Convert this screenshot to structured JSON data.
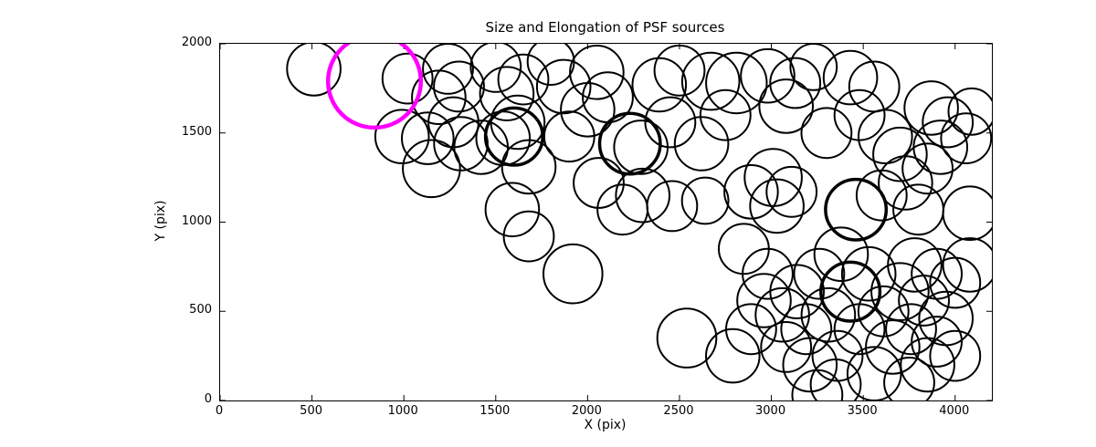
{
  "chart_data": {
    "type": "scatter",
    "title": "Size and Elongation of PSF sources",
    "xlabel": "X (pix)",
    "ylabel": "Y (pix)",
    "xlim": [
      0,
      4200
    ],
    "ylim": [
      0,
      2000
    ],
    "xticks": [
      0,
      500,
      1000,
      1500,
      2000,
      2500,
      3000,
      3500,
      4000
    ],
    "yticks": [
      0,
      500,
      1000,
      1500,
      2000
    ],
    "grid": false,
    "legend": null,
    "marker": "open-circle",
    "circle_color": "#000000",
    "default_linewidth": 2,
    "highlight": {
      "x": 840,
      "y": 1790,
      "r": 260,
      "w": 4.5,
      "color": "#ff00ff"
    },
    "points": [
      [
        510,
        1860,
        150
      ],
      [
        1020,
        1805,
        140
      ],
      [
        1240,
        1860,
        140
      ],
      [
        1190,
        1700,
        150
      ],
      [
        1300,
        1760,
        140
      ],
      [
        990,
        1480,
        150
      ],
      [
        1130,
        1470,
        145
      ],
      [
        1150,
        1300,
        160
      ],
      [
        1310,
        1440,
        150
      ],
      [
        1270,
        1560,
        140
      ],
      [
        1420,
        1420,
        150
      ],
      [
        1500,
        1870,
        140
      ],
      [
        1560,
        1720,
        150
      ],
      [
        1650,
        1800,
        140
      ],
      [
        1620,
        1560,
        150
      ],
      [
        1540,
        1470,
        150
      ],
      [
        1600,
        1480,
        160,
        3.5
      ],
      [
        1680,
        1310,
        150
      ],
      [
        1800,
        1900,
        130
      ],
      [
        1870,
        1760,
        150
      ],
      [
        1900,
        1480,
        140
      ],
      [
        2000,
        1630,
        150
      ],
      [
        2050,
        1840,
        150
      ],
      [
        1590,
        1070,
        150
      ],
      [
        1680,
        920,
        140
      ],
      [
        1920,
        710,
        165
      ],
      [
        2110,
        1700,
        140
      ],
      [
        2060,
        1220,
        140
      ],
      [
        2190,
        1070,
        140
      ],
      [
        2230,
        1440,
        170,
        3.5
      ],
      [
        2290,
        1420,
        150
      ],
      [
        2300,
        1150,
        150
      ],
      [
        2390,
        1770,
        150
      ],
      [
        2460,
        1090,
        140
      ],
      [
        2500,
        1850,
        140
      ],
      [
        2450,
        1560,
        140
      ],
      [
        2540,
        350,
        165
      ],
      [
        2620,
        1440,
        150
      ],
      [
        2640,
        1120,
        130
      ],
      [
        2670,
        1790,
        160
      ],
      [
        2750,
        1600,
        140
      ],
      [
        2810,
        1780,
        170
      ],
      [
        2790,
        250,
        150
      ],
      [
        2850,
        850,
        140
      ],
      [
        2890,
        400,
        140
      ],
      [
        2890,
        1170,
        150
      ],
      [
        2980,
        1820,
        150
      ],
      [
        2960,
        560,
        150
      ],
      [
        2980,
        710,
        140
      ],
      [
        3010,
        1250,
        160
      ],
      [
        3030,
        1090,
        150
      ],
      [
        3060,
        480,
        150
      ],
      [
        3080,
        300,
        140
      ],
      [
        3080,
        1650,
        150
      ],
      [
        3110,
        1170,
        140
      ],
      [
        3140,
        610,
        150
      ],
      [
        3130,
        1780,
        140
      ],
      [
        3190,
        400,
        140
      ],
      [
        3210,
        200,
        150
      ],
      [
        3230,
        1870,
        130
      ],
      [
        3250,
        30,
        140
      ],
      [
        3260,
        710,
        140
      ],
      [
        3300,
        1500,
        140
      ],
      [
        3310,
        480,
        150
      ],
      [
        3360,
        250,
        140
      ],
      [
        3380,
        820,
        150
      ],
      [
        3350,
        90,
        140
      ],
      [
        3430,
        610,
        165,
        3.5
      ],
      [
        3460,
        1070,
        170,
        3.5
      ],
      [
        3480,
        400,
        140
      ],
      [
        3480,
        1600,
        140
      ],
      [
        3430,
        1810,
        150
      ],
      [
        3530,
        710,
        150
      ],
      [
        3560,
        150,
        150
      ],
      [
        3560,
        1760,
        140
      ],
      [
        3600,
        1150,
        140
      ],
      [
        3610,
        500,
        140
      ],
      [
        3620,
        1480,
        150
      ],
      [
        3660,
        300,
        150
      ],
      [
        3700,
        610,
        160
      ],
      [
        3700,
        1380,
        150
      ],
      [
        3730,
        1220,
        150
      ],
      [
        3750,
        100,
        140
      ],
      [
        3760,
        400,
        140
      ],
      [
        3780,
        760,
        150
      ],
      [
        3800,
        1070,
        140
      ],
      [
        3830,
        560,
        140
      ],
      [
        3850,
        200,
        150
      ],
      [
        3850,
        1300,
        140
      ],
      [
        3870,
        1640,
        150
      ],
      [
        3900,
        710,
        140
      ],
      [
        3900,
        330,
        140
      ],
      [
        3920,
        1420,
        150
      ],
      [
        3950,
        460,
        150
      ],
      [
        3960,
        1560,
        140
      ],
      [
        4000,
        250,
        140
      ],
      [
        4000,
        660,
        140
      ],
      [
        4060,
        1470,
        140
      ],
      [
        4080,
        760,
        150
      ],
      [
        4080,
        1050,
        150
      ],
      [
        4090,
        1620,
        130
      ]
    ],
    "tick_direction": "in",
    "axes_box_color": "#000000"
  }
}
